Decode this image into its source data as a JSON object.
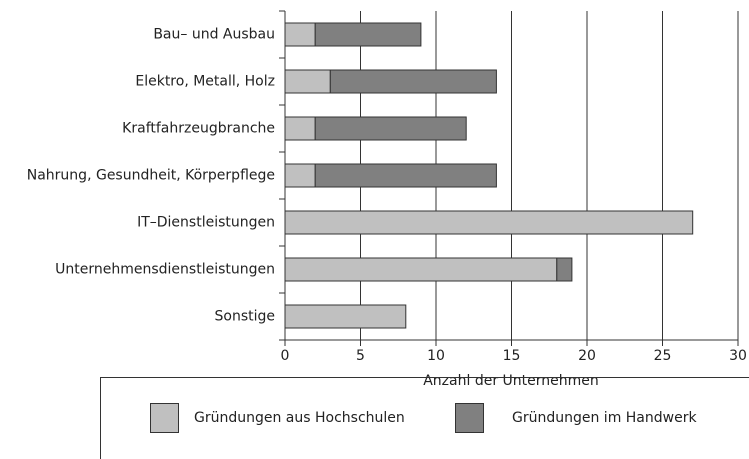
{
  "chart_data": {
    "type": "bar",
    "orientation": "horizontal",
    "stacked": true,
    "xlabel": "Anzahl der Unternehmen",
    "categories": [
      "Bau– und Ausbau",
      "Elektro, Metall, Holz",
      "Kraftfahrzeugbranche",
      "Nahrung, Gesundheit, Körperpflege",
      "IT–Dienstleistungen",
      "Unternehmensdienstleistungen",
      "Sonstige"
    ],
    "series": [
      {
        "name": "Gründungen aus Hochschulen",
        "color": "#c0c0c0",
        "values": [
          2,
          3,
          2,
          2,
          27,
          18,
          8
        ]
      },
      {
        "name": "Gründungen im Handwerk",
        "color": "#808080",
        "values": [
          7,
          11,
          10,
          12,
          0,
          1,
          0
        ]
      }
    ],
    "xlim": [
      0,
      30
    ],
    "xticks": [
      0,
      5,
      10,
      15,
      20,
      25,
      30
    ],
    "grid": true,
    "legend": "bottom"
  }
}
